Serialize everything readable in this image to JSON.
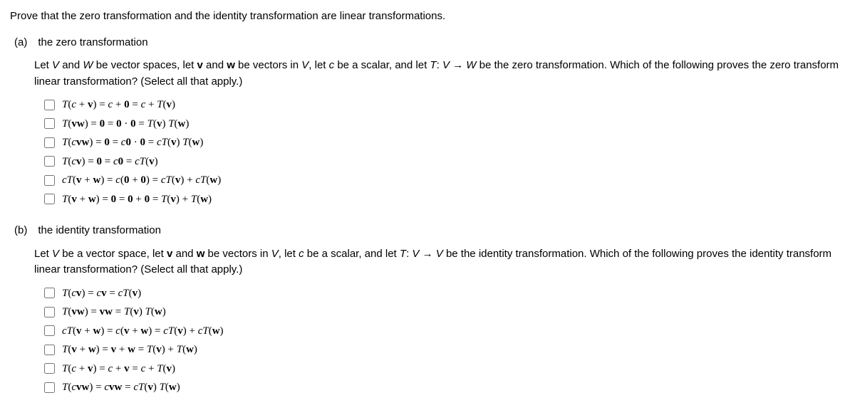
{
  "prompt": "Prove that the zero transformation and the identity transformation are linear transformations.",
  "partA": {
    "label": "(a) the zero transformation",
    "intro_html": "Let <span class='mi'>V</span> and <span class='mi'>W</span> be vector spaces, let <span class='bf'>v</span> and <span class='bf'>w</span> be vectors in <span class='mi'>V</span>, let <span class='mi'>c</span> be a scalar, and let <span class='mi'>T</span>: <span class='mi'>V</span> → <span class='mi'>W</span> be the zero transformation. Which of the following proves the zero transform linear transformation? (Select all that apply.)",
    "options": [
      "<span class='mi'>T</span>(<span class='mi'>c</span> + <span class='bf'>v</span>) = <span class='mi'>c</span> + <span class='bf'>0</span> = <span class='mi'>c</span> + <span class='mi'>T</span>(<span class='bf'>v</span>)",
      "<span class='mi'>T</span>(<span class='bf'>vw</span>) = <span class='bf'>0</span> = <span class='bf'>0</span> · <span class='bf'>0</span> = <span class='mi'>T</span>(<span class='bf'>v</span>) <span class='mi'>T</span>(<span class='bf'>w</span>)",
      "<span class='mi'>T</span>(<span class='mi'>c</span><span class='bf'>vw</span>) = <span class='bf'>0</span> = <span class='mi'>c</span><span class='bf'>0</span> · <span class='bf'>0</span> = <span class='mi'>cT</span>(<span class='bf'>v</span>) <span class='mi'>T</span>(<span class='bf'>w</span>)",
      "<span class='mi'>T</span>(<span class='mi'>c</span><span class='bf'>v</span>) = <span class='bf'>0</span> = <span class='mi'>c</span><span class='bf'>0</span> = <span class='mi'>cT</span>(<span class='bf'>v</span>)",
      "<span class='mi'>cT</span>(<span class='bf'>v</span> + <span class='bf'>w</span>) = <span class='mi'>c</span>(<span class='bf'>0</span> + <span class='bf'>0</span>) = <span class='mi'>cT</span>(<span class='bf'>v</span>) + <span class='mi'>cT</span>(<span class='bf'>w</span>)",
      "<span class='mi'>T</span>(<span class='bf'>v</span> + <span class='bf'>w</span>) = <span class='bf'>0</span> = <span class='bf'>0</span> + <span class='bf'>0</span> = <span class='mi'>T</span>(<span class='bf'>v</span>) + <span class='mi'>T</span>(<span class='bf'>w</span>)"
    ]
  },
  "partB": {
    "label": "(b) the identity transformation",
    "intro_html": "Let <span class='mi'>V</span> be a vector space, let <span class='bf'>v</span> and <span class='bf'>w</span> be vectors in <span class='mi'>V</span>, let <span class='mi'>c</span> be a scalar, and let <span class='mi'>T</span>: <span class='mi'>V</span> → <span class='mi'>V</span> be the identity transformation. Which of the following proves the identity transform linear transformation? (Select all that apply.)",
    "options": [
      "<span class='mi'>T</span>(<span class='mi'>c</span><span class='bf'>v</span>) = <span class='mi'>c</span><span class='bf'>v</span> = <span class='mi'>cT</span>(<span class='bf'>v</span>)",
      "<span class='mi'>T</span>(<span class='bf'>vw</span>) = <span class='bf'>vw</span> = <span class='mi'>T</span>(<span class='bf'>v</span>) <span class='mi'>T</span>(<span class='bf'>w</span>)",
      "<span class='mi'>cT</span>(<span class='bf'>v</span> + <span class='bf'>w</span>) = <span class='mi'>c</span>(<span class='bf'>v</span> + <span class='bf'>w</span>) = <span class='mi'>cT</span>(<span class='bf'>v</span>) + <span class='mi'>cT</span>(<span class='bf'>w</span>)",
      "<span class='mi'>T</span>(<span class='bf'>v</span> + <span class='bf'>w</span>) = <span class='bf'>v</span> + <span class='bf'>w</span> = <span class='mi'>T</span>(<span class='bf'>v</span>) + <span class='mi'>T</span>(<span class='bf'>w</span>)",
      "<span class='mi'>T</span>(<span class='mi'>c</span> + <span class='bf'>v</span>) = <span class='mi'>c</span> + <span class='bf'>v</span> = <span class='mi'>c</span> + <span class='mi'>T</span>(<span class='bf'>v</span>)",
      "<span class='mi'>T</span>(<span class='mi'>c</span><span class='bf'>vw</span>) = <span class='mi'>c</span><span class='bf'>vw</span> = <span class='mi'>cT</span>(<span class='bf'>v</span>) <span class='mi'>T</span>(<span class='bf'>w</span>)"
    ]
  }
}
